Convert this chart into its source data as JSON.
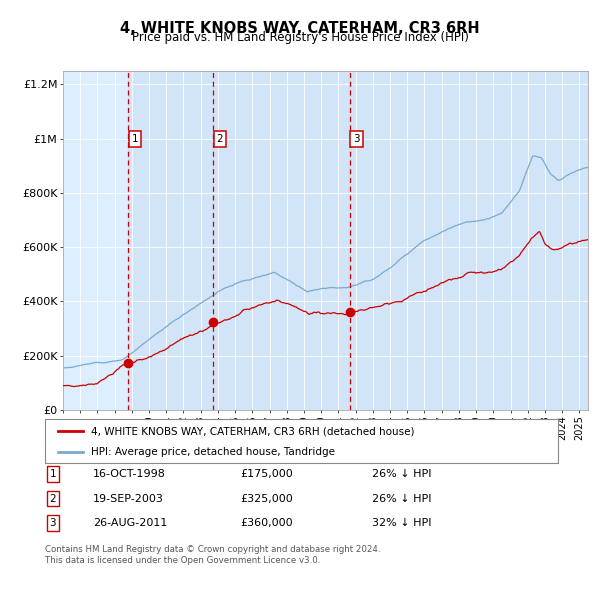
{
  "title": "4, WHITE KNOBS WAY, CATERHAM, CR3 6RH",
  "subtitle": "Price paid vs. HM Land Registry's House Price Index (HPI)",
  "legend_label_red": "4, WHITE KNOBS WAY, CATERHAM, CR3 6RH (detached house)",
  "legend_label_blue": "HPI: Average price, detached house, Tandridge",
  "transactions": [
    {
      "num": 1,
      "date": "16-OCT-1998",
      "price": 175000,
      "pct": "26%",
      "dir": "↓"
    },
    {
      "num": 2,
      "date": "19-SEP-2003",
      "price": 325000,
      "pct": "26%",
      "dir": "↓"
    },
    {
      "num": 3,
      "date": "26-AUG-2011",
      "price": 360000,
      "pct": "32%",
      "dir": "↓"
    }
  ],
  "transaction_years": [
    1998.79,
    2003.72,
    2011.65
  ],
  "transaction_prices": [
    175000,
    325000,
    360000
  ],
  "footnote1": "Contains HM Land Registry data © Crown copyright and database right 2024.",
  "footnote2": "This data is licensed under the Open Government Licence v3.0.",
  "ylim": [
    0,
    1250000
  ],
  "yticks": [
    0,
    200000,
    400000,
    600000,
    800000,
    1000000,
    1200000
  ],
  "ytick_labels": [
    "£0",
    "£200K",
    "£400K",
    "£600K",
    "£800K",
    "£1M",
    "£1.2M"
  ],
  "color_red": "#cc0000",
  "color_blue": "#7aabcf",
  "color_bg": "#ddeeff",
  "color_vline": "#cc0000",
  "start_year": 1995.0,
  "end_year": 2025.5
}
